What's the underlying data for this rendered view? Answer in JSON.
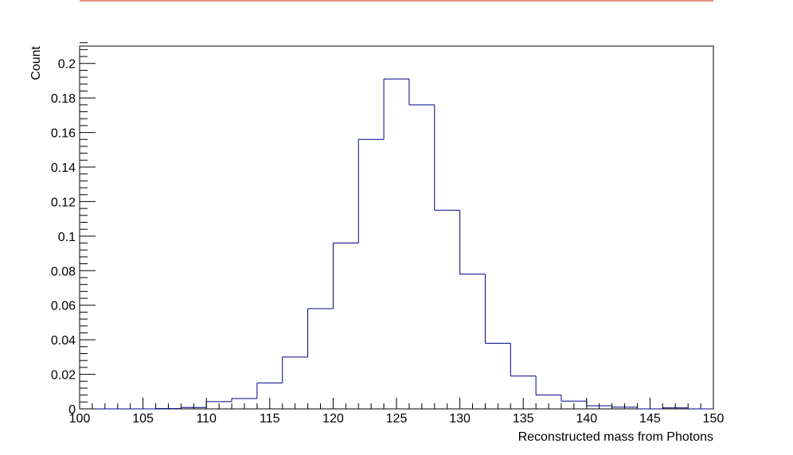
{
  "chart_data": {
    "type": "bar",
    "histogram": true,
    "title": "",
    "xlabel": "Reconstructed mass from Photons",
    "ylabel": "Count",
    "xlim": [
      100,
      150
    ],
    "ylim": [
      0,
      0.21
    ],
    "bin_width": 2,
    "x_ticks": [
      100,
      105,
      110,
      115,
      120,
      125,
      130,
      135,
      140,
      145,
      150
    ],
    "x_tick_labels": [
      "100",
      "105",
      "110",
      "115",
      "120",
      "125",
      "130",
      "135",
      "140",
      "145",
      "150"
    ],
    "y_ticks": [
      0,
      0.02,
      0.04,
      0.06,
      0.08,
      0.1,
      0.12,
      0.14,
      0.16,
      0.18,
      0.2
    ],
    "y_tick_labels": [
      "0",
      "0.02",
      "0.04",
      "0.06",
      "0.08",
      "0.1",
      "0.12",
      "0.14",
      "0.16",
      "0.18",
      "0.2"
    ],
    "bins": [
      {
        "x_low": 100,
        "x_high": 102,
        "value": 0
      },
      {
        "x_low": 102,
        "x_high": 104,
        "value": 0
      },
      {
        "x_low": 104,
        "x_high": 106,
        "value": 0
      },
      {
        "x_low": 106,
        "x_high": 108,
        "value": 0.0002
      },
      {
        "x_low": 108,
        "x_high": 110,
        "value": 0.0008
      },
      {
        "x_low": 110,
        "x_high": 112,
        "value": 0.0042
      },
      {
        "x_low": 112,
        "x_high": 114,
        "value": 0.006
      },
      {
        "x_low": 114,
        "x_high": 116,
        "value": 0.015
      },
      {
        "x_low": 116,
        "x_high": 118,
        "value": 0.03
      },
      {
        "x_low": 118,
        "x_high": 120,
        "value": 0.058
      },
      {
        "x_low": 120,
        "x_high": 122,
        "value": 0.096
      },
      {
        "x_low": 122,
        "x_high": 124,
        "value": 0.156
      },
      {
        "x_low": 124,
        "x_high": 126,
        "value": 0.191
      },
      {
        "x_low": 126,
        "x_high": 128,
        "value": 0.176
      },
      {
        "x_low": 128,
        "x_high": 130,
        "value": 0.115
      },
      {
        "x_low": 130,
        "x_high": 132,
        "value": 0.078
      },
      {
        "x_low": 132,
        "x_high": 134,
        "value": 0.038
      },
      {
        "x_low": 134,
        "x_high": 136,
        "value": 0.019
      },
      {
        "x_low": 136,
        "x_high": 138,
        "value": 0.008
      },
      {
        "x_low": 138,
        "x_high": 140,
        "value": 0.0045
      },
      {
        "x_low": 140,
        "x_high": 142,
        "value": 0.0018
      },
      {
        "x_low": 142,
        "x_high": 144,
        "value": 0.001
      },
      {
        "x_low": 144,
        "x_high": 146,
        "value": 0
      },
      {
        "x_low": 146,
        "x_high": 148,
        "value": 0.0006
      },
      {
        "x_low": 148,
        "x_high": 150,
        "value": 0
      }
    ],
    "grid": false,
    "legend": "none",
    "colors": {
      "histogram": "#00008b",
      "top_rule": "#cc2200",
      "axes": "#000000"
    }
  }
}
